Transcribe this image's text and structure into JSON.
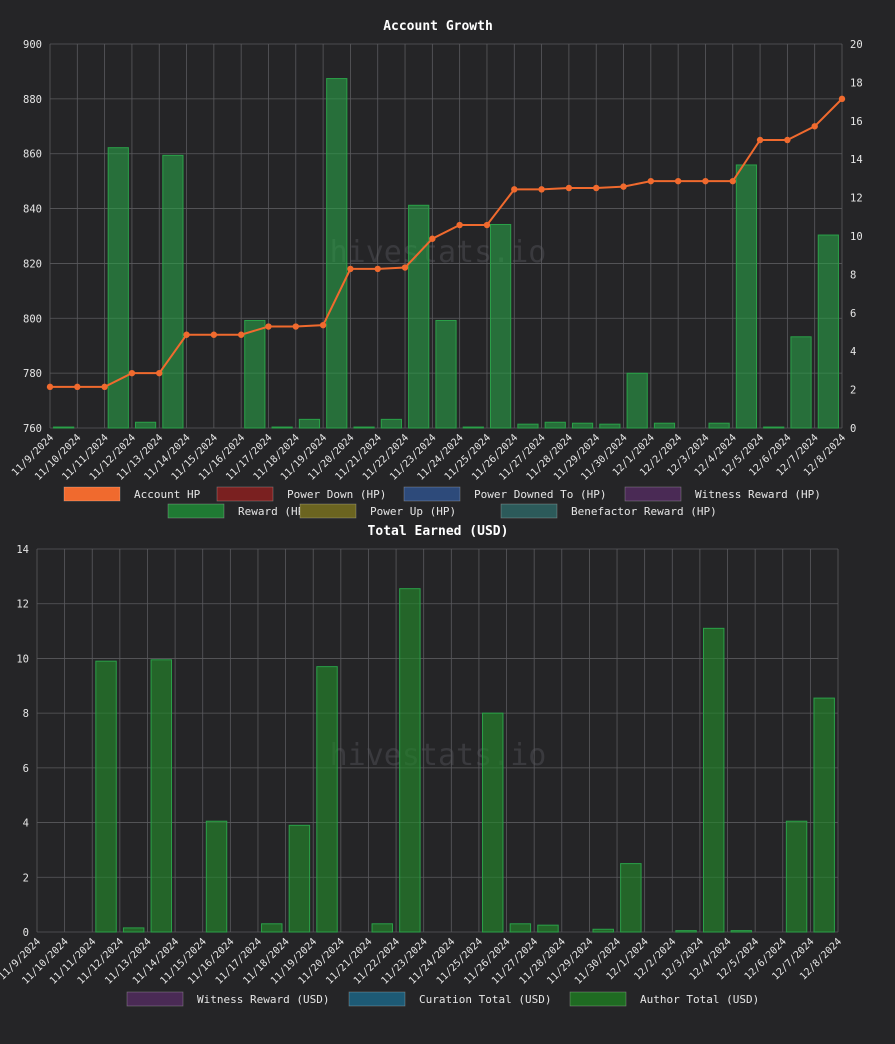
{
  "watermark": "hivestats.io",
  "colors": {
    "background": "#252527",
    "grid": "#5a5a5e",
    "text": "#e6e6e6",
    "account_hp": "#f06a2e",
    "power_down": "#7a2020",
    "power_downed_to": "#2d4a7a",
    "witness_reward": "#4a2a55",
    "reward": "#1f7a33",
    "power_up": "#6b6420",
    "benefactor": "#2c5a5a",
    "curation": "#1d5a75",
    "author": "#1f6b22"
  },
  "chart_data": [
    {
      "type": "bar",
      "title": "Account Growth",
      "categories": [
        "11/9/2024",
        "11/10/2024",
        "11/11/2024",
        "11/12/2024",
        "11/13/2024",
        "11/14/2024",
        "11/15/2024",
        "11/16/2024",
        "11/17/2024",
        "11/18/2024",
        "11/19/2024",
        "11/20/2024",
        "11/21/2024",
        "11/22/2024",
        "11/23/2024",
        "11/24/2024",
        "11/25/2024",
        "11/26/2024",
        "11/27/2024",
        "11/28/2024",
        "11/29/2024",
        "11/30/2024",
        "12/1/2024",
        "12/2/2024",
        "12/3/2024",
        "12/4/2024",
        "12/5/2024",
        "12/6/2024",
        "12/7/2024",
        "12/8/2024"
      ],
      "y_left": {
        "min": 760,
        "max": 900,
        "ticks": [
          760,
          780,
          800,
          820,
          840,
          860,
          880,
          900
        ]
      },
      "y_right": {
        "min": 0,
        "max": 20,
        "ticks": [
          0,
          2,
          4,
          6,
          8,
          10,
          12,
          14,
          16,
          18,
          20
        ]
      },
      "grid": true,
      "legend_position": "bottom",
      "legend_rows": [
        [
          "Account HP",
          "Power Down (HP)",
          "Power Downed To (HP)",
          "Witness Reward (HP)"
        ],
        [
          "Reward (HP)",
          "Power Up (HP)",
          "Benefactor Reward (HP)"
        ]
      ],
      "series": [
        {
          "name": "Account HP",
          "kind": "line",
          "axis": "left",
          "color_key": "account_hp",
          "values": [
            775,
            775,
            775,
            780,
            780,
            794,
            794,
            794,
            797,
            797,
            797.5,
            818,
            818,
            818.5,
            829,
            834,
            834,
            847,
            847,
            847.5,
            847.5,
            848,
            850,
            850,
            850,
            850,
            865,
            865,
            870,
            880
          ]
        },
        {
          "name": "Reward (HP)",
          "kind": "bar",
          "axis": "right",
          "color_key": "reward",
          "values": [
            0.05,
            0,
            14.6,
            0.3,
            14.2,
            0,
            0,
            5.6,
            0.05,
            0.45,
            18.2,
            0.05,
            0.45,
            11.6,
            5.6,
            0.05,
            10.6,
            0.2,
            0.3,
            0.25,
            0.2,
            2.85,
            0.25,
            0,
            0.25,
            13.7,
            0.05,
            4.75,
            10.05,
            0
          ]
        }
      ]
    },
    {
      "type": "bar",
      "title": "Total Earned (USD)",
      "categories": [
        "11/9/2024",
        "11/10/2024",
        "11/11/2024",
        "11/12/2024",
        "11/13/2024",
        "11/14/2024",
        "11/15/2024",
        "11/16/2024",
        "11/17/2024",
        "11/18/2024",
        "11/19/2024",
        "11/20/2024",
        "11/21/2024",
        "11/22/2024",
        "11/23/2024",
        "11/24/2024",
        "11/25/2024",
        "11/26/2024",
        "11/27/2024",
        "11/28/2024",
        "11/29/2024",
        "11/30/2024",
        "12/1/2024",
        "12/2/2024",
        "12/3/2024",
        "12/4/2024",
        "12/5/2024",
        "12/6/2024",
        "12/7/2024",
        "12/8/2024"
      ],
      "y": {
        "min": 0,
        "max": 14,
        "ticks": [
          0,
          2,
          4,
          6,
          8,
          10,
          12,
          14
        ]
      },
      "grid": true,
      "legend_position": "bottom",
      "legend_rows": [
        [
          "Witness Reward (USD)",
          "Curation Total (USD)",
          "Author Total (USD)"
        ]
      ],
      "series": [
        {
          "name": "Author Total (USD)",
          "color_key": "author",
          "values": [
            0,
            0,
            9.9,
            0.15,
            9.95,
            0,
            4.05,
            0,
            0.3,
            3.9,
            9.7,
            0,
            0.3,
            12.55,
            0,
            0,
            8.0,
            0.3,
            0.25,
            0,
            0.1,
            2.5,
            0,
            0.05,
            11.1,
            0.05,
            0,
            4.05,
            8.55,
            0
          ]
        }
      ]
    }
  ]
}
